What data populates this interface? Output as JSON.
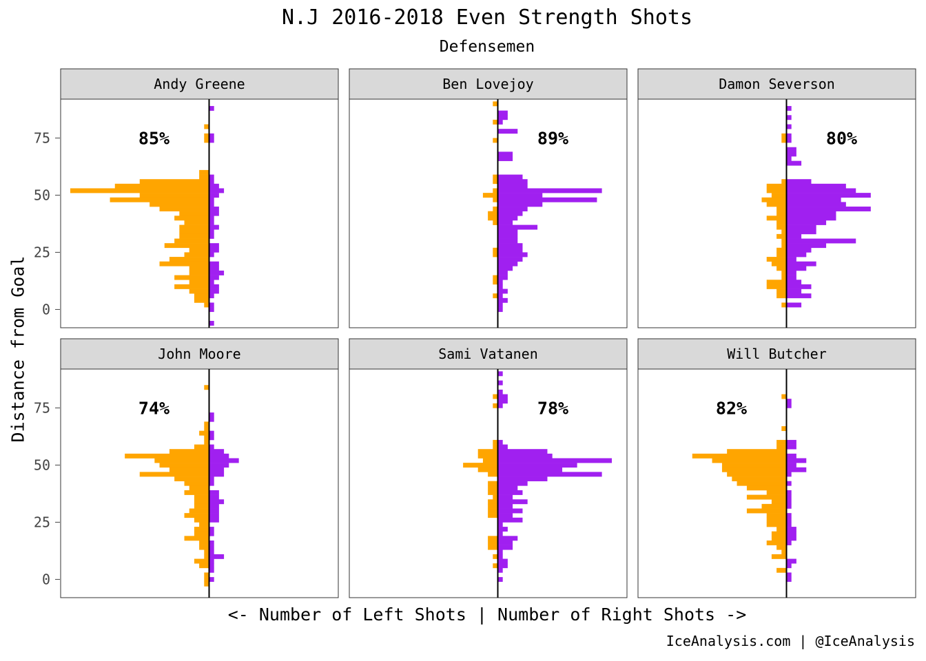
{
  "title": "N.J 2016-2018 Even Strength Shots",
  "subtitle": "Defensemen",
  "caption": "IceAnalysis.com | @IceAnalysis",
  "colors": {
    "left": "#FFA500",
    "right": "#A020F0",
    "strip": "#D9D9D9"
  },
  "chart_data": {
    "type": "bar",
    "orientation": "horizontal-mirrored",
    "xlabel": "<- Number of Left Shots | Number of Right Shots ->",
    "ylabel": "Distance from Goal",
    "ylim": [
      -8,
      92
    ],
    "yticks": [
      0,
      25,
      50,
      75
    ],
    "bin_width": 2,
    "xmax": 28,
    "series_names": [
      "Left Shots",
      "Right Shots"
    ],
    "panels": [
      {
        "name": "Andy Greene",
        "pct_label": "85%",
        "y": [
          88,
          82,
          80,
          76,
          74,
          60,
          58,
          56,
          54,
          52,
          50,
          48,
          46,
          44,
          42,
          40,
          38,
          36,
          34,
          32,
          30,
          28,
          26,
          24,
          22,
          20,
          18,
          16,
          14,
          12,
          10,
          8,
          6,
          4,
          2,
          0,
          -2,
          -6
        ],
        "left": [
          0,
          0,
          1,
          1,
          1,
          2,
          2,
          14,
          19,
          28,
          14,
          20,
          12,
          10,
          6,
          7,
          5,
          6,
          6,
          6,
          7,
          9,
          4,
          5,
          8,
          10,
          4,
          4,
          7,
          4,
          7,
          4,
          3,
          3,
          1,
          0,
          0,
          0
        ],
        "right": [
          1,
          0,
          0,
          1,
          1,
          0,
          1,
          1,
          2,
          3,
          2,
          1,
          1,
          2,
          2,
          1,
          1,
          2,
          1,
          1,
          0,
          2,
          2,
          1,
          0,
          2,
          2,
          3,
          2,
          1,
          2,
          2,
          1,
          0,
          1,
          1,
          0,
          1
        ]
      },
      {
        "name": "Ben Lovejoy",
        "pct_label": "89%",
        "y": [
          90,
          86,
          84,
          82,
          78,
          74,
          72,
          68,
          66,
          58,
          56,
          54,
          52,
          50,
          48,
          46,
          44,
          42,
          40,
          38,
          36,
          34,
          32,
          30,
          28,
          26,
          24,
          22,
          20,
          18,
          16,
          14,
          12,
          10,
          8,
          6,
          4,
          2,
          0
        ],
        "left": [
          1,
          0,
          0,
          1,
          0,
          1,
          0,
          0,
          0,
          1,
          1,
          0,
          1,
          3,
          1,
          0,
          1,
          2,
          2,
          1,
          0,
          0,
          0,
          0,
          0,
          1,
          1,
          0,
          0,
          0,
          0,
          1,
          1,
          0,
          0,
          1,
          0,
          0,
          0
        ],
        "right": [
          0,
          2,
          2,
          1,
          4,
          0,
          0,
          3,
          3,
          5,
          6,
          6,
          21,
          9,
          20,
          9,
          6,
          5,
          4,
          3,
          8,
          4,
          4,
          4,
          5,
          5,
          6,
          5,
          4,
          3,
          2,
          2,
          1,
          1,
          2,
          1,
          2,
          1,
          1
        ]
      },
      {
        "name": "Damon Severson",
        "pct_label": "80%",
        "y": [
          88,
          84,
          80,
          76,
          74,
          70,
          68,
          66,
          64,
          56,
          54,
          52,
          50,
          48,
          46,
          44,
          42,
          40,
          38,
          36,
          34,
          32,
          30,
          28,
          26,
          24,
          22,
          20,
          18,
          16,
          14,
          12,
          10,
          8,
          6,
          2
        ],
        "left": [
          0,
          0,
          0,
          1,
          1,
          0,
          0,
          0,
          0,
          1,
          4,
          4,
          3,
          5,
          4,
          2,
          2,
          4,
          2,
          2,
          1,
          2,
          1,
          1,
          2,
          2,
          4,
          3,
          2,
          1,
          1,
          4,
          4,
          2,
          2,
          1
        ],
        "right": [
          1,
          1,
          1,
          1,
          1,
          2,
          2,
          1,
          3,
          5,
          12,
          14,
          17,
          11,
          12,
          17,
          10,
          10,
          8,
          6,
          6,
          3,
          14,
          8,
          5,
          4,
          2,
          6,
          4,
          2,
          2,
          3,
          5,
          3,
          5,
          3
        ]
      },
      {
        "name": "John Moore",
        "pct_label": "74%",
        "y": [
          84,
          72,
          70,
          68,
          66,
          64,
          62,
          60,
          58,
          56,
          54,
          52,
          50,
          48,
          46,
          44,
          42,
          40,
          38,
          36,
          34,
          32,
          30,
          28,
          26,
          24,
          22,
          20,
          18,
          16,
          14,
          12,
          10,
          8,
          6,
          4,
          2,
          0,
          -2
        ],
        "left": [
          1,
          0,
          0,
          1,
          1,
          2,
          1,
          1,
          3,
          8,
          17,
          11,
          10,
          8,
          14,
          7,
          5,
          4,
          5,
          3,
          3,
          3,
          4,
          5,
          3,
          2,
          3,
          3,
          5,
          2,
          2,
          1,
          1,
          3,
          2,
          0,
          1,
          1,
          1
        ],
        "right": [
          0,
          1,
          1,
          0,
          0,
          1,
          1,
          0,
          1,
          3,
          4,
          6,
          4,
          3,
          3,
          1,
          1,
          0,
          2,
          2,
          3,
          2,
          2,
          2,
          2,
          0,
          1,
          1,
          0,
          1,
          1,
          1,
          3,
          1,
          1,
          1,
          0,
          1,
          0
        ]
      },
      {
        "name": "Sami Vatanen",
        "pct_label": "78%",
        "y": [
          90,
          86,
          82,
          80,
          78,
          76,
          60,
          58,
          56,
          54,
          52,
          50,
          48,
          46,
          44,
          42,
          40,
          38,
          36,
          34,
          32,
          30,
          28,
          26,
          24,
          22,
          20,
          18,
          16,
          14,
          12,
          10,
          8,
          6,
          4,
          0
        ],
        "left": [
          0,
          0,
          0,
          1,
          0,
          1,
          1,
          1,
          4,
          4,
          3,
          7,
          4,
          2,
          0,
          2,
          2,
          2,
          1,
          2,
          2,
          2,
          2,
          0,
          0,
          0,
          0,
          2,
          2,
          2,
          0,
          1,
          0,
          1,
          0,
          0
        ],
        "right": [
          1,
          1,
          1,
          2,
          2,
          1,
          1,
          2,
          10,
          11,
          23,
          16,
          13,
          21,
          10,
          6,
          4,
          5,
          3,
          6,
          3,
          5,
          3,
          5,
          1,
          2,
          1,
          4,
          3,
          3,
          1,
          1,
          2,
          2,
          1,
          1
        ]
      },
      {
        "name": "Will Butcher",
        "pct_label": "82%",
        "y": [
          80,
          78,
          76,
          66,
          64,
          62,
          60,
          58,
          56,
          54,
          52,
          50,
          48,
          46,
          44,
          42,
          40,
          38,
          36,
          34,
          32,
          30,
          28,
          26,
          24,
          22,
          20,
          18,
          16,
          14,
          12,
          10,
          8,
          6,
          4,
          2,
          0
        ],
        "left": [
          1,
          0,
          0,
          1,
          0,
          0,
          2,
          2,
          12,
          19,
          15,
          13,
          13,
          12,
          11,
          10,
          8,
          4,
          8,
          3,
          5,
          8,
          4,
          4,
          4,
          2,
          3,
          3,
          4,
          2,
          1,
          3,
          0,
          0,
          2,
          0,
          0
        ],
        "right": [
          0,
          1,
          1,
          0,
          0,
          0,
          2,
          2,
          0,
          2,
          4,
          2,
          4,
          1,
          0,
          1,
          0,
          1,
          1,
          1,
          1,
          0,
          1,
          1,
          1,
          2,
          2,
          2,
          1,
          0,
          0,
          0,
          2,
          1,
          0,
          1,
          1
        ]
      }
    ]
  }
}
